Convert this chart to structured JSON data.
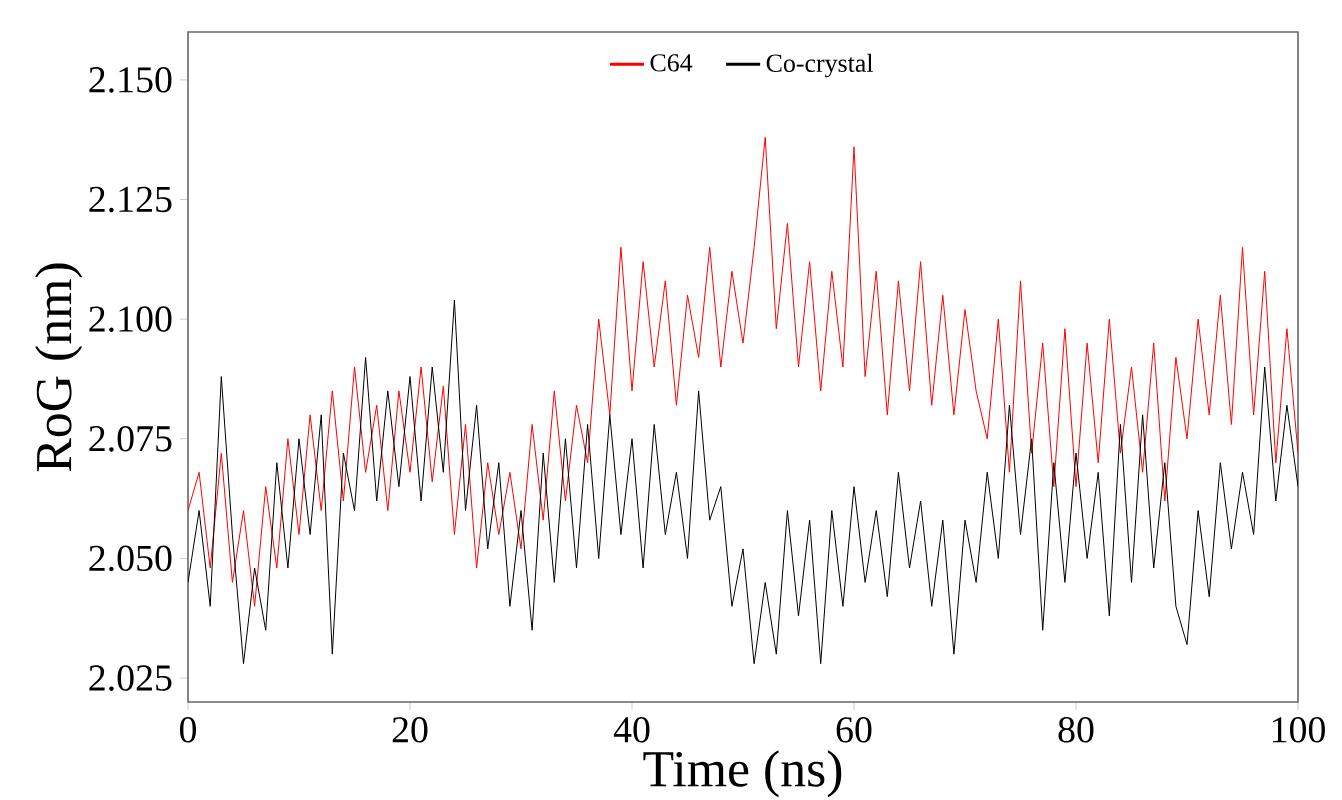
{
  "chart_data": {
    "type": "line",
    "xlabel": "Time (ns)",
    "ylabel": "RoG (nm)",
    "xlim": [
      0,
      100
    ],
    "xticks": [
      0,
      20,
      40,
      60,
      80,
      100
    ],
    "ylim": [
      2.02,
      2.16
    ],
    "yticks": [
      {
        "value": 2.025,
        "label": "2.025"
      },
      {
        "value": 2.05,
        "label": "2.050"
      },
      {
        "value": 2.075,
        "label": "2.075"
      },
      {
        "value": 2.1,
        "label": "2.100"
      },
      {
        "value": 2.125,
        "label": "2.125"
      },
      {
        "value": 2.15,
        "label": "2.150"
      }
    ],
    "legend": "top",
    "grid": false,
    "marker": "none",
    "line_style": "solid",
    "x": [
      0,
      1,
      2,
      3,
      4,
      5,
      6,
      7,
      8,
      9,
      10,
      11,
      12,
      13,
      14,
      15,
      16,
      17,
      18,
      19,
      20,
      21,
      22,
      23,
      24,
      25,
      26,
      27,
      28,
      29,
      30,
      31,
      32,
      33,
      34,
      35,
      36,
      37,
      38,
      39,
      40,
      41,
      42,
      43,
      44,
      45,
      46,
      47,
      48,
      49,
      50,
      51,
      52,
      53,
      54,
      55,
      56,
      57,
      58,
      59,
      60,
      61,
      62,
      63,
      64,
      65,
      66,
      67,
      68,
      69,
      70,
      71,
      72,
      73,
      74,
      75,
      76,
      77,
      78,
      79,
      80,
      81,
      82,
      83,
      84,
      85,
      86,
      87,
      88,
      89,
      90,
      91,
      92,
      93,
      94,
      95,
      96,
      97,
      98,
      99,
      100
    ],
    "series": [
      {
        "name": "C64",
        "color": "#ff0000",
        "values": [
          2.06,
          2.068,
          2.048,
          2.072,
          2.045,
          2.06,
          2.04,
          2.065,
          2.048,
          2.075,
          2.055,
          2.08,
          2.06,
          2.085,
          2.062,
          2.09,
          2.068,
          2.082,
          2.06,
          2.085,
          2.068,
          2.09,
          2.066,
          2.086,
          2.055,
          2.078,
          2.048,
          2.07,
          2.055,
          2.068,
          2.052,
          2.078,
          2.058,
          2.085,
          2.062,
          2.082,
          2.07,
          2.1,
          2.08,
          2.115,
          2.085,
          2.112,
          2.09,
          2.108,
          2.082,
          2.105,
          2.092,
          2.115,
          2.09,
          2.11,
          2.095,
          2.115,
          2.138,
          2.098,
          2.12,
          2.09,
          2.112,
          2.085,
          2.11,
          2.09,
          2.136,
          2.088,
          2.11,
          2.08,
          2.108,
          2.085,
          2.112,
          2.082,
          2.105,
          2.08,
          2.102,
          2.085,
          2.075,
          2.1,
          2.068,
          2.108,
          2.072,
          2.095,
          2.065,
          2.098,
          2.065,
          2.095,
          2.07,
          2.1,
          2.072,
          2.09,
          2.068,
          2.095,
          2.062,
          2.092,
          2.075,
          2.1,
          2.08,
          2.105,
          2.078,
          2.115,
          2.08,
          2.11,
          2.07,
          2.098,
          2.072
        ]
      },
      {
        "name": "Co-crystal",
        "color": "#000000",
        "values": [
          2.045,
          2.06,
          2.04,
          2.088,
          2.055,
          2.028,
          2.048,
          2.035,
          2.07,
          2.048,
          2.075,
          2.055,
          2.08,
          2.03,
          2.072,
          2.06,
          2.092,
          2.062,
          2.085,
          2.065,
          2.088,
          2.062,
          2.09,
          2.068,
          2.104,
          2.06,
          2.082,
          2.052,
          2.07,
          2.04,
          2.06,
          2.035,
          2.072,
          2.045,
          2.075,
          2.048,
          2.078,
          2.05,
          2.08,
          2.055,
          2.075,
          2.048,
          2.078,
          2.055,
          2.068,
          2.05,
          2.085,
          2.058,
          2.065,
          2.04,
          2.052,
          2.028,
          2.045,
          2.03,
          2.06,
          2.038,
          2.058,
          2.028,
          2.06,
          2.04,
          2.065,
          2.045,
          2.06,
          2.042,
          2.068,
          2.048,
          2.062,
          2.04,
          2.058,
          2.03,
          2.058,
          2.045,
          2.068,
          2.05,
          2.082,
          2.055,
          2.075,
          2.035,
          2.07,
          2.045,
          2.072,
          2.05,
          2.068,
          2.038,
          2.078,
          2.045,
          2.08,
          2.048,
          2.07,
          2.04,
          2.032,
          2.06,
          2.042,
          2.07,
          2.052,
          2.068,
          2.055,
          2.09,
          2.062,
          2.082,
          2.065
        ]
      }
    ]
  }
}
